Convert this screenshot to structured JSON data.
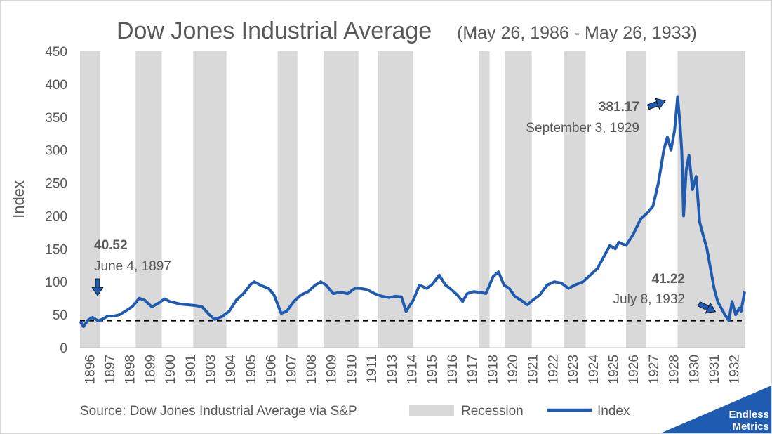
{
  "chart_data": {
    "type": "line",
    "title": "Dow Jones Industrial Average",
    "subtitle": "(May 26, 1986 - May 26, 1933)",
    "ylabel": "Index",
    "xlabel": "",
    "ylim": [
      0,
      450
    ],
    "yticks": [
      0,
      50,
      100,
      150,
      200,
      250,
      300,
      350,
      400,
      450
    ],
    "xlim": [
      1896.4,
      1933.4
    ],
    "x_tick_labels": [
      "1896",
      "1897",
      "1898",
      "1899",
      "1900",
      "1901",
      "1903",
      "1904",
      "1905",
      "1906",
      "1907",
      "1908",
      "1909",
      "1910",
      "1911",
      "1913",
      "1914",
      "1915",
      "1916",
      "1917",
      "1918",
      "1920",
      "1921",
      "1922",
      "1923",
      "1924",
      "1925",
      "1926",
      "1927",
      "1928",
      "1930",
      "1931",
      "1932"
    ],
    "grid": false,
    "legend_position": "bottom",
    "series": [
      {
        "name": "Index",
        "color": "#1f5bb0",
        "x": [
          1896.4,
          1896.6,
          1896.85,
          1897.1,
          1897.42,
          1897.7,
          1897.95,
          1898.3,
          1898.6,
          1898.9,
          1899.3,
          1899.7,
          1900.0,
          1900.4,
          1900.8,
          1901.1,
          1901.4,
          1901.7,
          1902.0,
          1902.4,
          1902.8,
          1903.2,
          1903.6,
          1903.9,
          1904.3,
          1904.7,
          1905.1,
          1905.5,
          1905.9,
          1906.1,
          1906.5,
          1906.9,
          1907.2,
          1907.6,
          1907.9,
          1908.3,
          1908.7,
          1909.1,
          1909.5,
          1909.8,
          1910.1,
          1910.5,
          1910.9,
          1911.3,
          1911.7,
          1912.0,
          1912.4,
          1912.8,
          1913.2,
          1913.6,
          1913.95,
          1914.3,
          1914.55,
          1914.95,
          1915.3,
          1915.7,
          1916.0,
          1916.4,
          1916.75,
          1917.0,
          1917.4,
          1917.7,
          1917.95,
          1918.3,
          1918.7,
          1919.0,
          1919.4,
          1919.7,
          1920.0,
          1920.3,
          1920.6,
          1920.95,
          1921.3,
          1921.6,
          1922.0,
          1922.4,
          1922.8,
          1923.2,
          1923.6,
          1923.95,
          1924.4,
          1924.8,
          1925.2,
          1925.6,
          1925.9,
          1926.2,
          1926.4,
          1926.8,
          1927.2,
          1927.6,
          1928.0,
          1928.3,
          1928.6,
          1928.9,
          1929.1,
          1929.3,
          1929.5,
          1929.67,
          1929.8,
          1929.9,
          1930.0,
          1930.15,
          1930.3,
          1930.5,
          1930.7,
          1930.9,
          1931.1,
          1931.3,
          1931.5,
          1931.7,
          1931.9,
          1932.1,
          1932.3,
          1932.52,
          1932.7,
          1932.9,
          1933.1,
          1933.2,
          1933.3,
          1933.4
        ],
        "values": [
          40,
          32,
          42,
          46,
          40.5,
          44,
          48,
          48,
          50,
          55,
          62,
          75,
          72,
          62,
          68,
          74,
          70,
          68,
          66,
          65,
          64,
          62,
          50,
          43,
          47,
          55,
          72,
          82,
          96,
          100,
          94,
          90,
          80,
          52,
          55,
          70,
          80,
          85,
          95,
          100,
          95,
          82,
          84,
          82,
          90,
          90,
          88,
          82,
          78,
          76,
          78,
          77,
          55,
          72,
          95,
          90,
          96,
          110,
          95,
          90,
          80,
          70,
          82,
          85,
          84,
          82,
          108,
          115,
          95,
          90,
          78,
          72,
          65,
          72,
          80,
          95,
          100,
          98,
          90,
          95,
          100,
          110,
          120,
          140,
          155,
          150,
          160,
          155,
          172,
          195,
          205,
          215,
          250,
          300,
          320,
          300,
          330,
          381.17,
          340,
          298,
          200,
          270,
          292,
          240,
          260,
          190,
          170,
          150,
          120,
          90,
          70,
          60,
          50,
          41.22,
          70,
          50,
          60,
          55,
          70,
          85
        ]
      }
    ],
    "recessions": [
      [
        1896.4,
        1897.5
      ],
      [
        1899.5,
        1900.95
      ],
      [
        1902.7,
        1904.55
      ],
      [
        1907.4,
        1908.5
      ],
      [
        1910.0,
        1911.9
      ],
      [
        1913.0,
        1914.95
      ],
      [
        1918.6,
        1919.2
      ],
      [
        1920.05,
        1921.55
      ],
      [
        1923.35,
        1924.55
      ],
      [
        1926.8,
        1927.9
      ],
      [
        1929.67,
        1933.4
      ]
    ],
    "reference_line": 41,
    "annotations": [
      {
        "value": "40.52",
        "date": "June 4, 1897"
      },
      {
        "value": "381.17",
        "date": "September 3, 1929"
      },
      {
        "value": "41.22",
        "date": "July 8, 1932"
      }
    ],
    "source": "Source: Dow Jones Industrial Average via S&P",
    "legend": [
      {
        "label": "Recession",
        "color": "#d9d9d9"
      },
      {
        "label": "Index",
        "color": "#1f5bb0"
      }
    ],
    "brand": {
      "line1": "Endless",
      "line2": "Metrics",
      "color": "#1f5bb0"
    }
  }
}
